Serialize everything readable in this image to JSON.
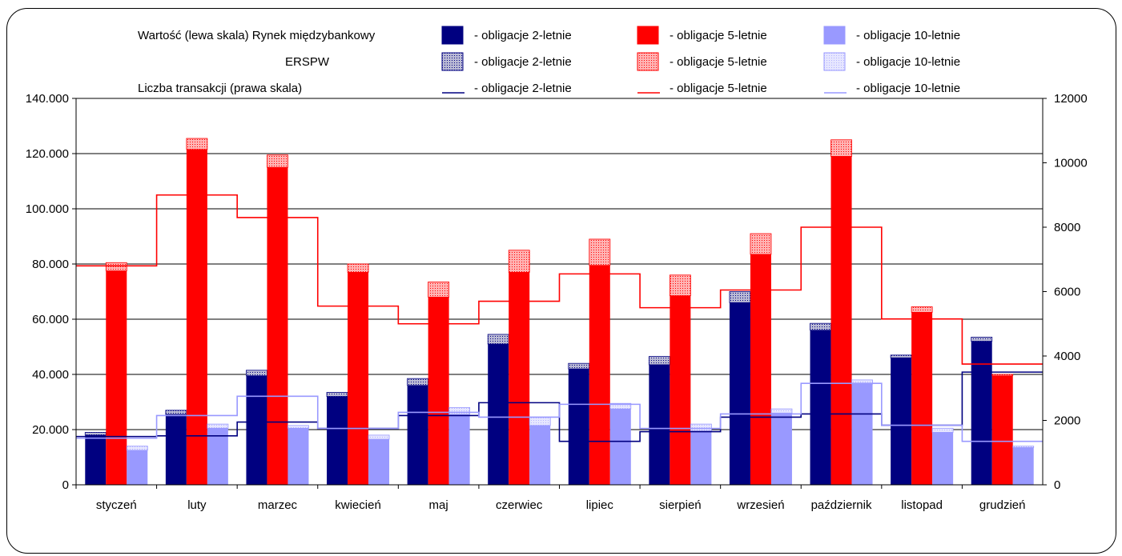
{
  "chart_data": {
    "type": "bar",
    "categories": [
      "styczeń",
      "luty",
      "marzec",
      "kwiecień",
      "maj",
      "czerwiec",
      "lipiec",
      "sierpień",
      "wrzesień",
      "październik",
      "listopad",
      "grudzień"
    ],
    "left_axis": {
      "ticks": [
        "0",
        "20.000",
        "40.000",
        "60.000",
        "80.000",
        "100.000",
        "120.000",
        "140.000"
      ],
      "ylim": [
        0,
        140000
      ]
    },
    "right_axis": {
      "ticks": [
        "0",
        "2000",
        "4000",
        "6000",
        "8000",
        "10000",
        "12000"
      ],
      "ylim": [
        0,
        12000
      ]
    },
    "legend": {
      "rows": [
        {
          "label": "Wartość  (lewa skala)  Rynek międzybankowy",
          "items": [
            "- obligacje 2-letnie",
            "- obligacje 5-letnie",
            "- obligacje 10-letnie"
          ]
        },
        {
          "label": "ERSPW",
          "items": [
            "- obligacje 2-letnie",
            "- obligacje 5-letnie",
            "- obligacje 10-letnie"
          ]
        },
        {
          "label": "Liczba transakcji (prawa skala)",
          "items": [
            "- obligacje 2-letnie",
            "- obligacje 5-letnie",
            "- obligacje 10-letnie"
          ]
        }
      ]
    },
    "colors": {
      "b2": "#000080",
      "b5": "#ff0000",
      "b10": "#9999ff",
      "b2_erspw": "#8c8cb4",
      "b5_erspw": "#ff9999",
      "b10_erspw": "#ccccff"
    },
    "series": [
      {
        "name": "Rynek międzybankowy - obligacje 2-letnie",
        "axis": "left",
        "values": [
          18000,
          25500,
          39500,
          32000,
          36000,
          51000,
          42000,
          43500,
          66000,
          56000,
          46000,
          52000
        ]
      },
      {
        "name": "ERSPW - obligacje 2-letnie",
        "axis": "left",
        "values": [
          1000,
          1500,
          2000,
          1500,
          2500,
          3500,
          2000,
          3000,
          4000,
          2500,
          1000,
          1500
        ]
      },
      {
        "name": "Rynek międzybankowy - obligacje 5-letnie",
        "axis": "left",
        "values": [
          77500,
          121500,
          115000,
          77000,
          68000,
          77000,
          79500,
          68500,
          83500,
          119000,
          62500,
          39500
        ]
      },
      {
        "name": "ERSPW - obligacje 5-letnie",
        "axis": "left",
        "values": [
          3000,
          4000,
          4500,
          3000,
          5500,
          8000,
          9500,
          7500,
          7500,
          6000,
          2000,
          500
        ]
      },
      {
        "name": "Rynek międzybankowy - obligacje 10-letnie",
        "axis": "left",
        "values": [
          12500,
          20500,
          20500,
          16500,
          25500,
          21500,
          27500,
          19500,
          26000,
          36500,
          19000,
          13500
        ]
      },
      {
        "name": "ERSPW - obligacje 10-letnie",
        "axis": "left",
        "values": [
          1500,
          1500,
          1000,
          1500,
          2500,
          3000,
          2000,
          2500,
          1500,
          1500,
          1500,
          500
        ]
      },
      {
        "name": "Liczba transakcji - obligacje 2-letnie",
        "axis": "right",
        "type": "line",
        "values": [
          1500,
          1520,
          1950,
          1750,
          2150,
          2550,
          1350,
          1650,
          2100,
          2200,
          1850,
          3500
        ]
      },
      {
        "name": "Liczba transakcji - obligacje 5-letnie",
        "axis": "right",
        "type": "line",
        "values": [
          6800,
          9000,
          8300,
          5550,
          5000,
          5700,
          6550,
          5500,
          6050,
          8000,
          5150,
          3750
        ]
      },
      {
        "name": "Liczba transakcji - obligacje 10-letnie",
        "axis": "right",
        "type": "line",
        "values": [
          1450,
          2150,
          2750,
          1750,
          2250,
          2100,
          2500,
          1750,
          2200,
          3150,
          1850,
          1350
        ]
      }
    ],
    "grid": true
  }
}
